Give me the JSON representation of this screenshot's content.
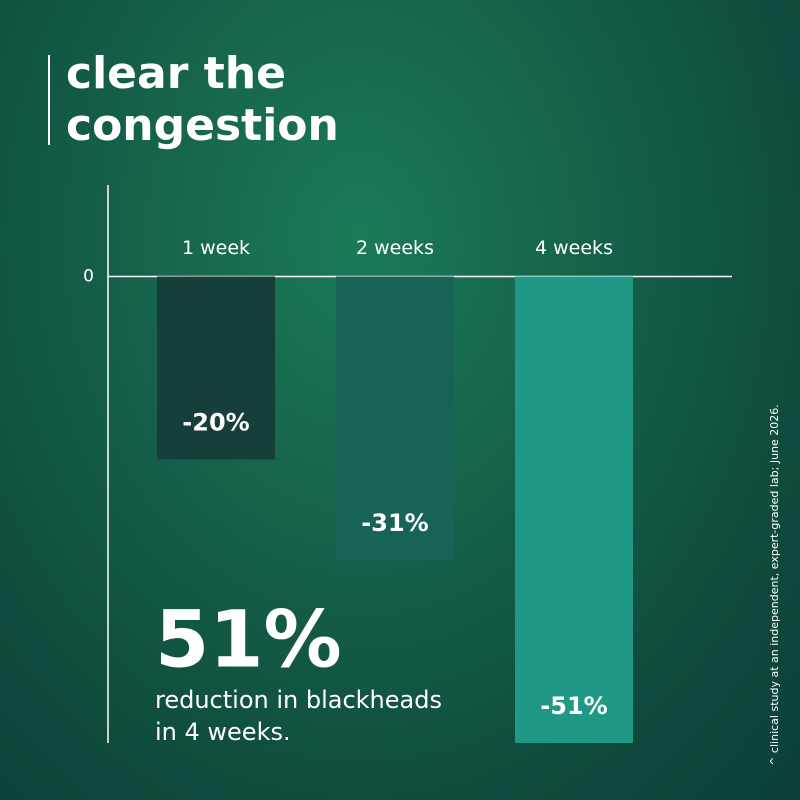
{
  "chart_data": {
    "type": "bar",
    "title": "clear the congestion",
    "categories": [
      "1 week",
      "2 weeks",
      "4 weeks"
    ],
    "values": [
      -20,
      -31,
      -51
    ],
    "value_labels": [
      "-20%",
      "-31%",
      "-51%"
    ],
    "colors": [
      "#153f38",
      "#176456",
      "#1f9985"
    ],
    "ylim": [
      -51,
      10
    ],
    "yticks": [
      0
    ],
    "annotation": {
      "headline": "51%",
      "lines": [
        "reduction in blackheads",
        "in 4 weeks."
      ]
    },
    "footnote": "^ clinical study at an independent, expert-graded lab; June 2026."
  }
}
